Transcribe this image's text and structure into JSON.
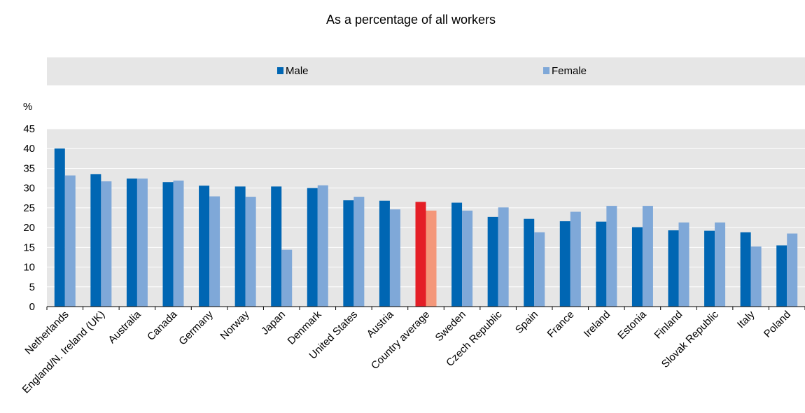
{
  "chart_data": {
    "type": "bar",
    "title": "As a percentage of all workers",
    "ylabel": "%",
    "xlabel": "",
    "ylim": [
      0,
      45
    ],
    "yticks": [
      0,
      5,
      10,
      15,
      20,
      25,
      30,
      35,
      40,
      45
    ],
    "grid": true,
    "legend_position": "top",
    "categories": [
      "Netherlands",
      "England/N. Ireland (UK)",
      "Australia",
      "Canada",
      "Germany",
      "Norway",
      "Japan",
      "Denmark",
      "United States",
      "Austria",
      "Country average",
      "Sweden",
      "Czech Republic",
      "Spain",
      "France",
      "Ireland",
      "Estonia",
      "Finland",
      "Slovak Republic",
      "Italy",
      "Poland"
    ],
    "highlight_category": "Country average",
    "series": [
      {
        "name": "Male",
        "color": "#0066b3",
        "highlight_color": "#e41e26",
        "values": [
          40.0,
          33.5,
          32.4,
          31.5,
          30.6,
          30.4,
          30.4,
          30.0,
          26.9,
          26.8,
          26.5,
          26.3,
          22.7,
          22.2,
          21.6,
          21.5,
          20.1,
          19.3,
          19.2,
          18.8,
          15.5
        ]
      },
      {
        "name": "Female",
        "color": "#7fa8d8",
        "highlight_color": "#f4977a",
        "values": [
          33.2,
          31.7,
          32.4,
          31.9,
          27.9,
          27.8,
          14.4,
          30.7,
          27.8,
          24.6,
          24.3,
          24.3,
          25.1,
          18.8,
          24.0,
          25.5,
          25.5,
          21.3,
          21.3,
          15.2,
          18.5
        ]
      }
    ]
  }
}
